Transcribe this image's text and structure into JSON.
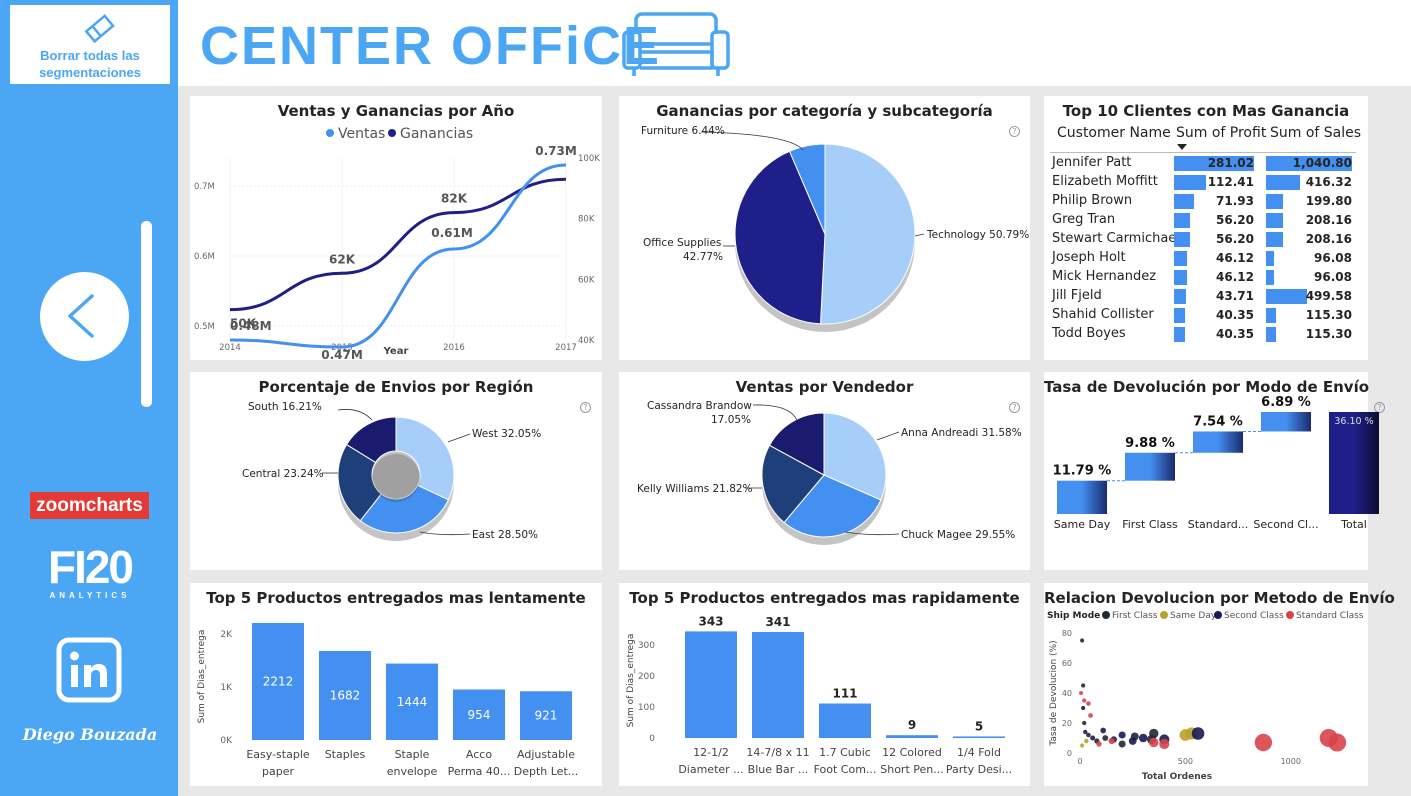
{
  "sidebar": {
    "clear_button_label": "Borrar todas las segmentaciones",
    "zoomcharts_logo": "zoomcharts",
    "fi20_big": "FI20",
    "fi20_small": "ANALYTICS",
    "author": "Diego Bouzada"
  },
  "header": {
    "title": "CENTER OFFiCE"
  },
  "colors": {
    "accent": "#4ba6f4",
    "bar": "#4390f0",
    "dark_navy": "#1f1f8a",
    "light_blue": "#a7cdf9"
  },
  "cards": {
    "ventas_ganancias": {
      "title": "Ventas y Ganancias por Año",
      "legend": [
        "Ventas",
        "Ganancias"
      ],
      "xlabel": "Year",
      "x_ticks": [
        "2014",
        "2015",
        "2016",
        "2017"
      ],
      "left_ticks": [
        "0.5M",
        "0.6M",
        "0.7M"
      ],
      "right_ticks": [
        "40K",
        "60K",
        "80K",
        "100K"
      ],
      "ventas_labels": [
        "0.48M",
        "0.47M",
        "0.61M",
        "0.73M"
      ],
      "ganancias_labels": [
        "50K",
        "62K",
        "82K"
      ]
    },
    "categoria": {
      "title": "Ganancias por categoría y subcategoría",
      "labels": [
        "Furniture 6.44%",
        "Office Supplies",
        "42.77%",
        "Technology 50.79%"
      ]
    },
    "clientes": {
      "title": "Top 10 Clientes con Mas Ganancia",
      "headers": [
        "Customer Name",
        "Sum of Profit",
        "Sum of Sales"
      ],
      "rows": [
        {
          "name": "Jennifer Patt",
          "profit": "281.02",
          "sales": "1,040.80"
        },
        {
          "name": "Elizabeth Moffitt",
          "profit": "112.41",
          "sales": "416.32"
        },
        {
          "name": "Philip Brown",
          "profit": "71.93",
          "sales": "199.80"
        },
        {
          "name": "Greg Tran",
          "profit": "56.20",
          "sales": "208.16"
        },
        {
          "name": "Stewart Carmichael",
          "profit": "56.20",
          "sales": "208.16"
        },
        {
          "name": "Joseph Holt",
          "profit": "46.12",
          "sales": "96.08"
        },
        {
          "name": "Mick Hernandez",
          "profit": "46.12",
          "sales": "96.08"
        },
        {
          "name": "Jill Fjeld",
          "profit": "43.71",
          "sales": "499.58"
        },
        {
          "name": "Shahid Collister",
          "profit": "40.35",
          "sales": "115.30"
        },
        {
          "name": "Todd Boyes",
          "profit": "40.35",
          "sales": "115.30"
        }
      ]
    },
    "region": {
      "title": "Porcentaje de Envios por Región",
      "labels": [
        "South 16.21%",
        "West 32.05%",
        "Central 23.24%",
        "East 28.50%"
      ]
    },
    "vendedor": {
      "title": "Ventas por Vendedor",
      "labels": [
        "Cassandra Brandow",
        "17.05%",
        "Anna Andreadi 31.58%",
        "Kelly Williams 21.82%",
        "Chuck Magee 29.55%"
      ]
    },
    "devolucion": {
      "title": "Tasa de Devolución por Modo de Envío",
      "values": [
        "11.79 %",
        "9.88 %",
        "7.54 %",
        "6.89 %",
        "36.10 %"
      ],
      "categories": [
        "Same Day",
        "First Class",
        "Standard...",
        "Second Cl...",
        "Total"
      ]
    },
    "lentos": {
      "title": "Top 5 Productos entregados mas lentamente",
      "ylabel": "Sum of Dias_entrega",
      "y_ticks": [
        "0K",
        "1K",
        "2K"
      ],
      "values": [
        "2212",
        "1682",
        "1444",
        "954",
        "921"
      ],
      "cat_line1": [
        "Easy-staple",
        "Staples",
        "Staple",
        "Acco",
        "Adjustable"
      ],
      "cat_line2": [
        "paper",
        "",
        "envelope",
        "Perma 40...",
        "Depth Let..."
      ]
    },
    "rapidos": {
      "title": "Top 5 Productos entregados mas rapidamente",
      "ylabel": "Sum of Dias_entrega",
      "y_ticks": [
        "0",
        "100",
        "200",
        "300"
      ],
      "values": [
        "343",
        "341",
        "111",
        "9",
        "5"
      ],
      "cat_line1": [
        "12-1/2",
        "14-7/8 x 11",
        "1.7 Cubic",
        "12 Colored",
        "1/4 Fold"
      ],
      "cat_line2": [
        "Diameter ...",
        "Blue Bar ...",
        "Foot Com...",
        "Short Pen...",
        "Party Desi..."
      ]
    },
    "relacion": {
      "title": "Relacion Devolucion por Metodo de Envío",
      "legend_title": "Ship Mode",
      "legend": [
        "First Class",
        "Same Day",
        "Second Class",
        "Standard Class"
      ],
      "ylabel": "Tasa de Devolucion (%)",
      "xlabel": "Total Ordenes",
      "y_ticks": [
        "0",
        "20",
        "40",
        "60",
        "80"
      ],
      "x_ticks": [
        "0",
        "500",
        "1000"
      ]
    }
  },
  "chart_data": [
    {
      "type": "line",
      "title": "Ventas y Ganancias por Año",
      "x": [
        2014,
        2015,
        2016,
        2017
      ],
      "xlabel": "Year",
      "series": [
        {
          "name": "Ventas",
          "values": [
            0.48,
            0.47,
            0.61,
            0.73
          ],
          "unit": "M"
        },
        {
          "name": "Ganancias",
          "values": [
            50,
            62,
            82,
            93
          ],
          "unit": "K"
        }
      ],
      "ylim_left": [
        0.48,
        0.74
      ],
      "ylim_right": [
        40,
        100
      ]
    },
    {
      "type": "pie",
      "title": "Ganancias por categoría y subcategoría",
      "categories": [
        "Technology",
        "Office Supplies",
        "Furniture"
      ],
      "values": [
        50.79,
        42.77,
        6.44
      ]
    },
    {
      "type": "table",
      "title": "Top 10 Clientes con Mas Ganancia",
      "profit": [
        281.02,
        112.41,
        71.93,
        56.2,
        56.2,
        46.12,
        46.12,
        43.71,
        40.35,
        40.35
      ],
      "sales": [
        1040.8,
        416.32,
        199.8,
        208.16,
        208.16,
        96.08,
        96.08,
        499.58,
        115.3,
        115.3
      ]
    },
    {
      "type": "pie",
      "title": "Porcentaje de Envios por Región",
      "categories": [
        "West",
        "East",
        "Central",
        "South"
      ],
      "values": [
        32.05,
        28.5,
        23.24,
        16.21
      ]
    },
    {
      "type": "pie",
      "title": "Ventas por Vendedor",
      "categories": [
        "Anna Andreadi",
        "Chuck Magee",
        "Kelly Williams",
        "Cassandra Brandow"
      ],
      "values": [
        31.58,
        29.55,
        21.82,
        17.05
      ]
    },
    {
      "type": "bar",
      "title": "Tasa de Devolución por Modo de Envío",
      "categories": [
        "Same Day",
        "First Class",
        "Standard...",
        "Second Cl...",
        "Total"
      ],
      "values": [
        11.79,
        9.88,
        7.54,
        6.89,
        36.1
      ],
      "waterfall": true
    },
    {
      "type": "bar",
      "title": "Top 5 Productos entregados mas lentamente",
      "values": [
        2212,
        1682,
        1444,
        954,
        921
      ],
      "ylim": [
        0,
        2400
      ]
    },
    {
      "type": "bar",
      "title": "Top 5 Productos entregados mas rapidamente",
      "values": [
        343,
        341,
        111,
        9,
        5
      ],
      "ylim": [
        0,
        370
      ]
    },
    {
      "type": "scatter",
      "title": "Relacion Devolucion por Metodo de Envío",
      "xlabel": "Total Ordenes",
      "ylabel": "Tasa de Devolucion (%)",
      "xlim": [
        0,
        1300
      ],
      "ylim": [
        0,
        80
      ],
      "series": [
        {
          "name": "First Class",
          "points": [
            [
              10,
              75
            ],
            [
              15,
              45
            ],
            [
              20,
              20
            ],
            [
              40,
              12
            ],
            [
              80,
              8
            ],
            [
              120,
              10
            ],
            [
              200,
              6
            ],
            [
              260,
              11
            ],
            [
              340,
              9
            ],
            [
              350,
              13
            ]
          ]
        },
        {
          "name": "Same Day",
          "points": [
            [
              10,
              5
            ],
            [
              30,
              8
            ],
            [
              500,
              12
            ],
            [
              530,
              13
            ]
          ]
        },
        {
          "name": "Second Class",
          "points": [
            [
              15,
              30
            ],
            [
              25,
              14
            ],
            [
              60,
              10
            ],
            [
              110,
              15
            ],
            [
              160,
              9
            ],
            [
              200,
              12
            ],
            [
              250,
              8
            ],
            [
              300,
              10
            ],
            [
              400,
              9
            ],
            [
              560,
              13
            ]
          ]
        },
        {
          "name": "Standard Class",
          "points": [
            [
              5,
              40
            ],
            [
              20,
              35
            ],
            [
              40,
              33
            ],
            [
              50,
              25
            ],
            [
              90,
              6
            ],
            [
              150,
              8
            ],
            [
              350,
              7
            ],
            [
              400,
              6
            ],
            [
              870,
              7
            ],
            [
              1180,
              10
            ],
            [
              1220,
              7
            ]
          ]
        }
      ]
    }
  ]
}
